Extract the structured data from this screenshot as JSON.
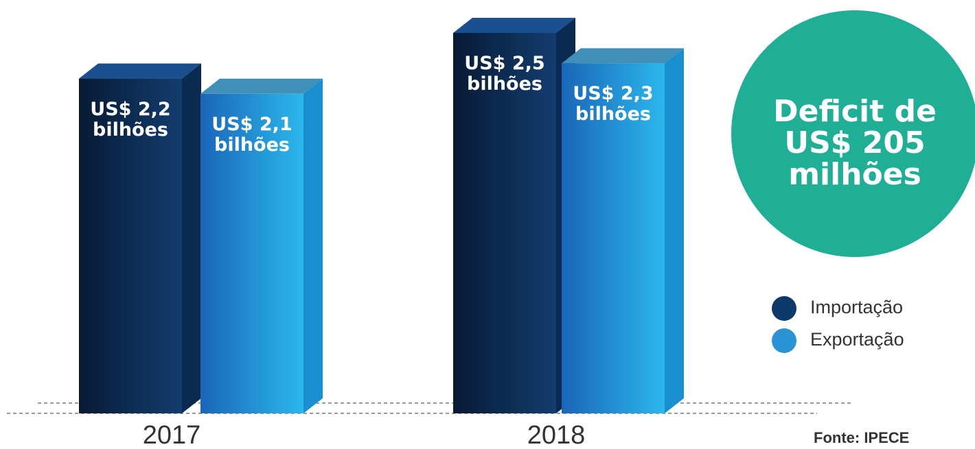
{
  "chart_data": {
    "type": "bar",
    "categories": [
      "2017",
      "2018"
    ],
    "series": [
      {
        "name": "Importação",
        "color": "#0d3a6b",
        "values": [
          2.2,
          2.5
        ],
        "value_labels": [
          "US$ 2,2 bilhões",
          "US$ 2,5 bilhões"
        ]
      },
      {
        "name": "Exportação",
        "color": "#2a93d6",
        "values": [
          2.1,
          2.3
        ],
        "value_labels": [
          "US$ 2,1 bilhões",
          "US$ 2,3 bilhões"
        ]
      }
    ],
    "annotation": "Deficit de US$ 205 milhões",
    "source": "Fonte: IPECE"
  }
}
